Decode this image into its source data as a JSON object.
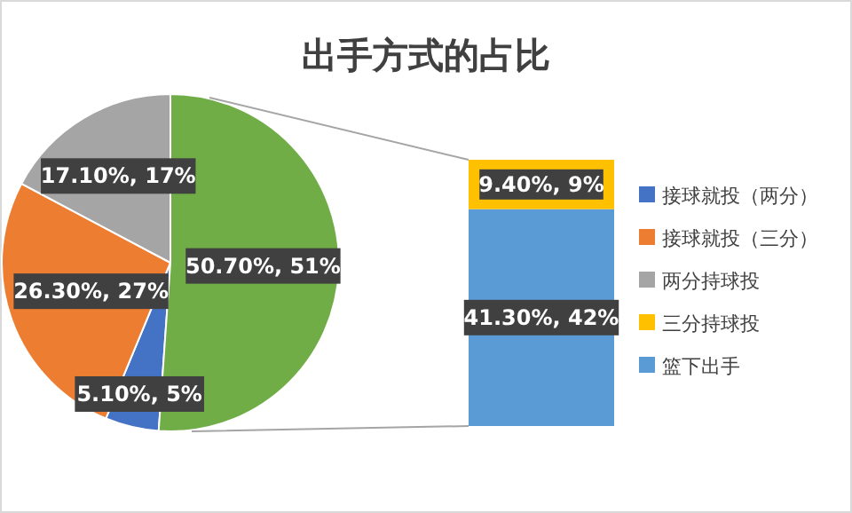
{
  "chart_data": [
    {
      "type": "pie",
      "title": "出手方式的占比",
      "categories": [
        "接球就投（两分）",
        "接球就投（三分）",
        "两分持球投",
        null
      ],
      "values": [
        5.1,
        26.3,
        17.1,
        50.7
      ],
      "colors": [
        "#4472c4",
        "#ed7d31",
        "#a5a5a5",
        "#70ad47"
      ],
      "value_labels": [
        "5.10%, 5%",
        "26.30%, 27%",
        "17.10%, 17%",
        "50.70%, 51%"
      ],
      "legend": "right"
    },
    {
      "type": "bar",
      "stacked": true,
      "categories": [
        null
      ],
      "legend": "right",
      "series": [
        {
          "name": "篮下出手",
          "color": "#5b9bd5",
          "values": [
            41.3
          ],
          "value_labels": [
            "41.30%, 42%"
          ]
        },
        {
          "name": "三分持球投",
          "color": "#ffc000",
          "values": [
            9.4
          ],
          "value_labels": [
            "9.40%, 9%"
          ]
        }
      ]
    }
  ]
}
